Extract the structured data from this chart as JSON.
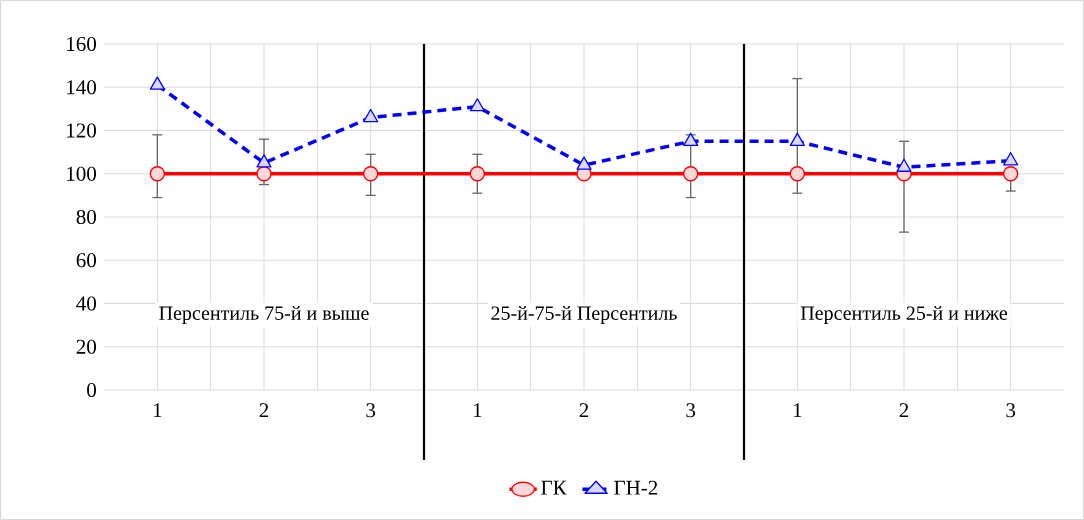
{
  "chart_data": {
    "type": "line",
    "categories": [
      "1",
      "2",
      "3",
      "1",
      "2",
      "3",
      "1",
      "2",
      "3"
    ],
    "ylim": [
      0,
      160
    ],
    "yticks": [
      0,
      20,
      40,
      60,
      80,
      100,
      120,
      140,
      160
    ],
    "grid": true,
    "legend": "bottom",
    "series": [
      {
        "name": "ГК",
        "color": "#ff0000",
        "marker": "circle",
        "line_style": "solid",
        "values": [
          100,
          100,
          100,
          100,
          100,
          100,
          100,
          100,
          100
        ],
        "errors": [
          [
            89,
            118
          ],
          [
            95,
            116
          ],
          [
            90,
            109
          ],
          [
            91,
            109
          ],
          null,
          [
            89,
            118
          ],
          [
            91,
            144
          ],
          [
            73,
            115
          ],
          [
            92,
            100
          ]
        ]
      },
      {
        "name": "ГН-2",
        "color": "#0000ff",
        "marker": "triangle",
        "line_style": "dashed",
        "values": [
          141,
          105,
          126,
          131,
          104,
          115,
          115,
          103,
          106
        ]
      }
    ],
    "annotations": [
      "Персентиль 75-й и выше",
      "25-й-75-й Персентиль",
      "Персентиль 25-й и ниже"
    ]
  }
}
